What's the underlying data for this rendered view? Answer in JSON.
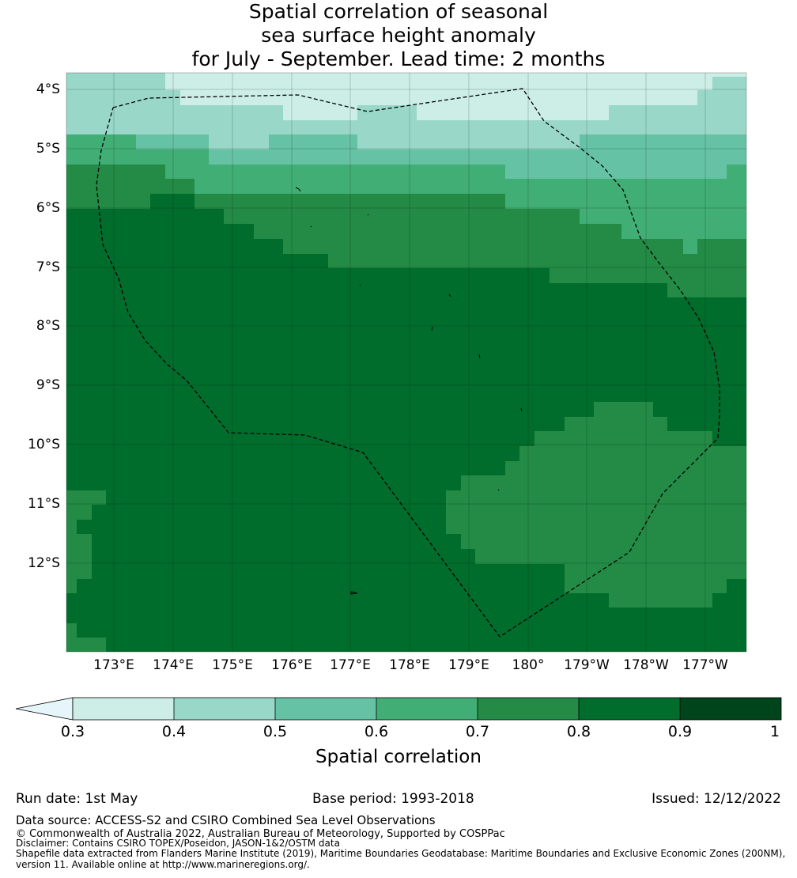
{
  "title": {
    "line1": "Spatial correlation of seasonal",
    "line2": "sea surface height anomaly",
    "line3": "for July - September. Lead time: 2 months"
  },
  "map": {
    "lat_labels": [
      "4°S",
      "5°S",
      "6°S",
      "7°S",
      "8°S",
      "9°S",
      "10°S",
      "11°S",
      "12°S"
    ],
    "lon_labels": [
      "173°E",
      "174°E",
      "175°E",
      "176°E",
      "177°E",
      "178°E",
      "179°E",
      "180°",
      "179°W",
      "178°W",
      "177°W"
    ],
    "lon_range": [
      172.2,
      183.7
    ],
    "lat_range": [
      -3.7,
      -13.5
    ],
    "gridlines": true,
    "eez_boundary_style": "dashed black",
    "field_description": "correlation highest (0.8–0.9) across the central and southern region, lower (0.3–0.6) toward the north, 0.7–0.8 band in the south-east"
  },
  "colorbar": {
    "label": "Spatial correlation",
    "ticks": [
      "0.3",
      "0.4",
      "0.5",
      "0.6",
      "0.7",
      "0.8",
      "0.9",
      "1"
    ],
    "extend": "min",
    "colors": {
      "below_0.3": "#e5f5f9",
      "0.3-0.4": "#cceee7",
      "0.4-0.5": "#99d8c9",
      "0.5-0.6": "#66c2a4",
      "0.6-0.7": "#41ae76",
      "0.7-0.8": "#238b45",
      "0.8-0.9": "#006d2c",
      "0.9-1": "#00441b"
    }
  },
  "footer": {
    "run_date": "Run date: 1st May",
    "base_period": "Base period: 1993-2018",
    "issued": "Issued: 12/12/2022",
    "data_source": "Data source: ACCESS-S2 and CSIRO Combined Sea Level Observations",
    "copyright": "© Commonwealth of Australia 2022, Australian Bureau of Meteorology, Supported by COSPPac",
    "disclaimer": "Disclaimer: Contains CSIRO TOPEX/Poseidon, JASON-1&2/OSTM data",
    "shapefile_line1": "Shapefile data extracted from Flanders Marine Institute (2019), Maritime Boundaries Geodatabase: Maritime Boundaries and Exclusive Economic Zones (200NM),",
    "shapefile_line2": "version 11. Available online at http://www.marineregions.org/."
  }
}
